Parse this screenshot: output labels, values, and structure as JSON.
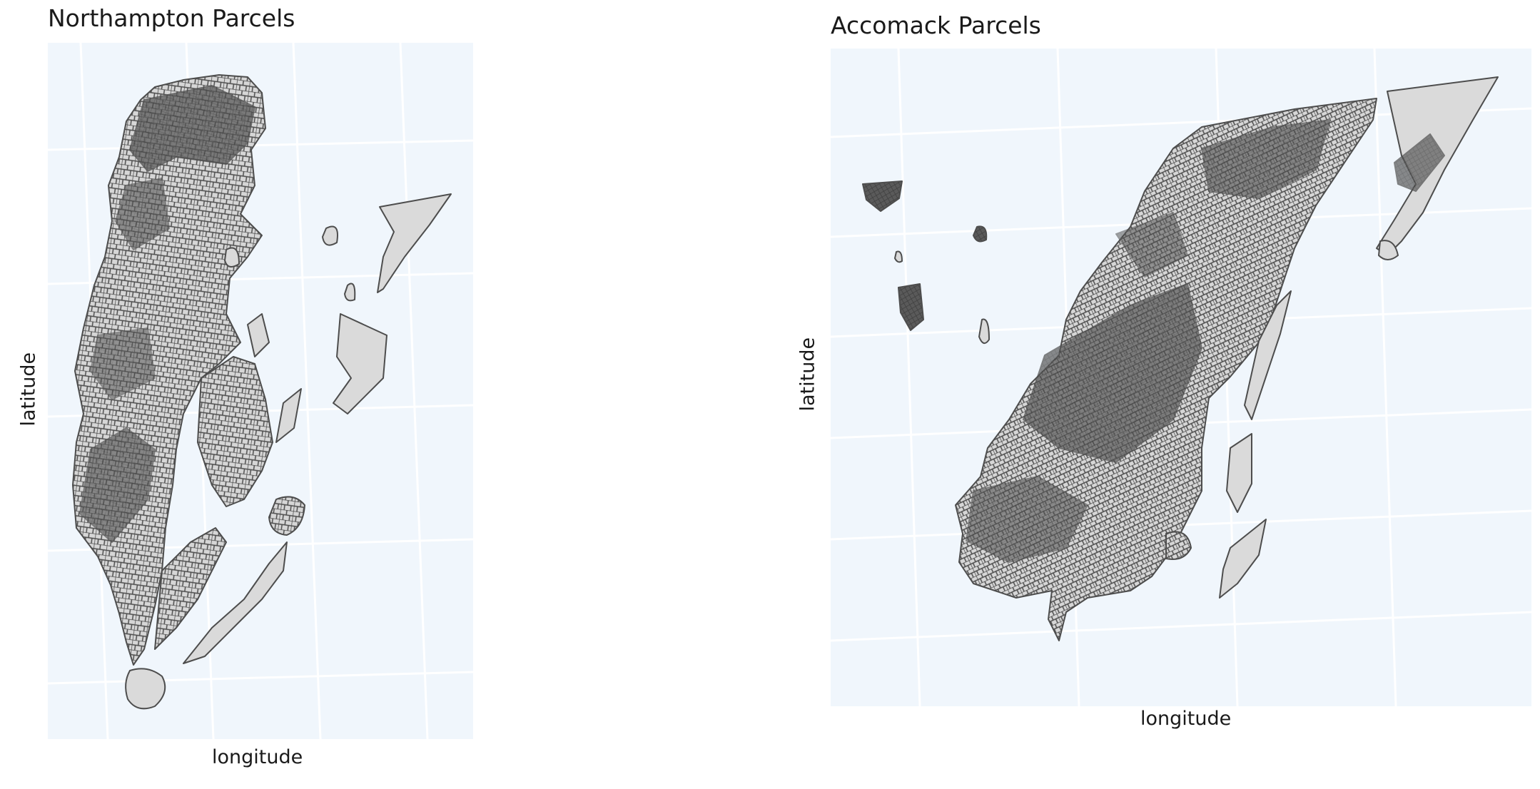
{
  "maps": [
    {
      "title": "Northampton Parcels",
      "xlabel": "longitude",
      "ylabel": "latitude",
      "background_color": "#f0f6fc",
      "gridline_color": "#ffffff",
      "parcel_fill": "#dadada",
      "parcel_outline": "#4d4d4d"
    },
    {
      "title": "Accomack Parcels",
      "xlabel": "longitude",
      "ylabel": "latitude",
      "background_color": "#f0f6fc",
      "gridline_color": "#ffffff",
      "parcel_fill": "#dadada",
      "parcel_outline": "#4d4d4d"
    }
  ]
}
